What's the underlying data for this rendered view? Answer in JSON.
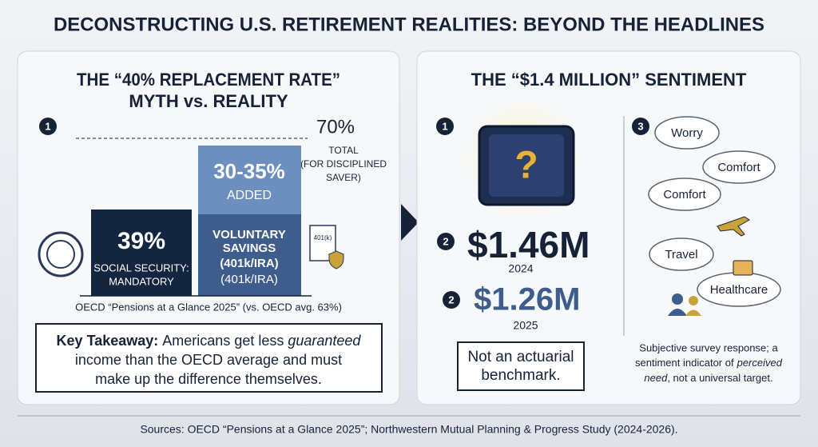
{
  "title": "DECONSTRUCTING U.S. RETIREMENT REALITIES: BEYOND THE HEADLINES",
  "left_panel": {
    "title_lines": [
      "THE “40% REPLACEMENT RATE”",
      "MYTH vs. REALITY"
    ],
    "step": "1",
    "total": {
      "value": "70%",
      "lines": [
        "TOTAL",
        "(FOR DISCIPLINED",
        "SAVER)"
      ]
    },
    "added": {
      "value": "30-35%",
      "label": "ADDED"
    },
    "voluntary": {
      "lines": [
        "VOLUNTARY",
        "SAVINGS",
        "(401k/IRA)",
        "(401k/IRA)"
      ]
    },
    "social_security": {
      "value": "39%",
      "lines": [
        "SOCIAL SECURITY:",
        "MANDATORY"
      ]
    },
    "doc_icon_label": "401(k)",
    "source": "OECD “Pensions at a Glance 2025” (vs. OECD avg. 63%)",
    "takeaway": {
      "label": "Key Takeaway:",
      "text": "Americans get less",
      "emphasis": "guaranteed",
      "lines": [
        "income than the OECD average and must",
        "make up the difference themselves."
      ]
    }
  },
  "right_panel": {
    "title": "THE “$1.4 MILLION” SENTIMENT",
    "steps": [
      "1",
      "2",
      "2",
      "3"
    ],
    "amounts": [
      {
        "value": "$1.46M",
        "year": "2024"
      },
      {
        "value": "$1.26M",
        "year": "2025"
      }
    ],
    "disclaimer_lines": [
      "Not an actuarial",
      "benchmark."
    ],
    "clouds": [
      "Worry",
      "Comfort",
      "Comfort",
      "Travel",
      "Healthcare"
    ],
    "note": {
      "line1": "Subjective survey response; a",
      "line2": "sentiment indicator of",
      "emphasis1": "perceived",
      "emphasis2": "need",
      "rest": ", not a universal target."
    }
  },
  "footer": "Sources: OECD “Pensions at a Glance 2025”; Northwestern Mutual Planning & Progress Study (2024-2026)."
}
